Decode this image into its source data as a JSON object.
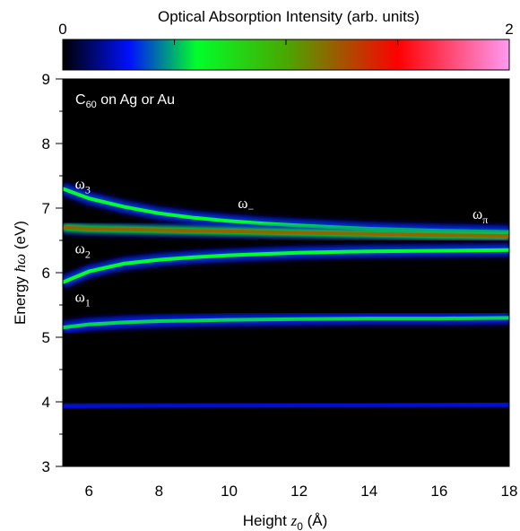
{
  "chart_data": {
    "type": "heatmap",
    "title": "",
    "xlabel_prefix": "Height ",
    "xlabel_var": "z",
    "xlabel_sub": "0",
    "xlabel_unit": " (Å)",
    "ylabel_prefix": "Energy ",
    "ylabel_var": "ħω",
    "ylabel_unit": " (eV)",
    "xlim": [
      5.25,
      18
    ],
    "ylim": [
      3,
      9
    ],
    "xticks": [
      6,
      8,
      10,
      12,
      14,
      16,
      18
    ],
    "yticks": [
      3,
      4,
      5,
      6,
      7,
      8,
      9
    ],
    "colorbar": {
      "label": "Optical Absorption Intensity (arb. units)",
      "min_label": "0",
      "max_label": "2",
      "range": [
        0,
        2
      ],
      "colors": [
        "#000000",
        "#0010ff",
        "#00ff2a",
        "#48a800",
        "#ff0000",
        "#ff9af2"
      ],
      "stops": [
        0,
        0.15,
        0.3,
        0.5,
        0.75,
        1
      ]
    },
    "inset_label_main": "C",
    "inset_label_sub": "60",
    "inset_label_rest": " on Ag or Au",
    "series": [
      {
        "name": "ω₃",
        "x": [
          5.25,
          6,
          7,
          8,
          9,
          10,
          11,
          12,
          14,
          16,
          18
        ],
        "y": [
          7.3,
          7.15,
          7.02,
          6.92,
          6.85,
          6.8,
          6.76,
          6.73,
          6.68,
          6.65,
          6.63
        ],
        "intensity": 0.6
      },
      {
        "name": "ω₂ / ω₋",
        "x": [
          5.25,
          6,
          8,
          10,
          12,
          14,
          16,
          18
        ],
        "y": [
          6.7,
          6.68,
          6.66,
          6.64,
          6.62,
          6.6,
          6.58,
          6.57
        ],
        "intensity": 1.2
      },
      {
        "name": "ω₁",
        "x": [
          5.25,
          6,
          7,
          8,
          9,
          10,
          11,
          12,
          14,
          16,
          18
        ],
        "y": [
          5.85,
          6.02,
          6.14,
          6.2,
          6.24,
          6.27,
          6.29,
          6.31,
          6.33,
          6.34,
          6.35
        ],
        "intensity": 0.6
      },
      {
        "name": "5.3 eV",
        "x": [
          5.25,
          6,
          7,
          8,
          10,
          12,
          14,
          16,
          18
        ],
        "y": [
          5.15,
          5.2,
          5.23,
          5.25,
          5.27,
          5.28,
          5.29,
          5.29,
          5.3
        ],
        "intensity": 0.55
      },
      {
        "name": "3.95 eV",
        "x": [
          5.25,
          18
        ],
        "y": [
          3.93,
          3.96
        ],
        "intensity": 0.25
      }
    ],
    "annotations": [
      {
        "base": "ω",
        "sub": "3",
        "x": 5.6,
        "y": 7.3
      },
      {
        "base": "ω",
        "sub": "2",
        "x": 5.6,
        "y": 6.3
      },
      {
        "base": "ω",
        "sub": "1",
        "x": 5.6,
        "y": 5.55
      },
      {
        "base": "ω",
        "sub": "−",
        "x": 10.25,
        "y": 7.0
      },
      {
        "base": "ω",
        "sub": "π",
        "x": 16.95,
        "y": 6.83
      }
    ]
  }
}
